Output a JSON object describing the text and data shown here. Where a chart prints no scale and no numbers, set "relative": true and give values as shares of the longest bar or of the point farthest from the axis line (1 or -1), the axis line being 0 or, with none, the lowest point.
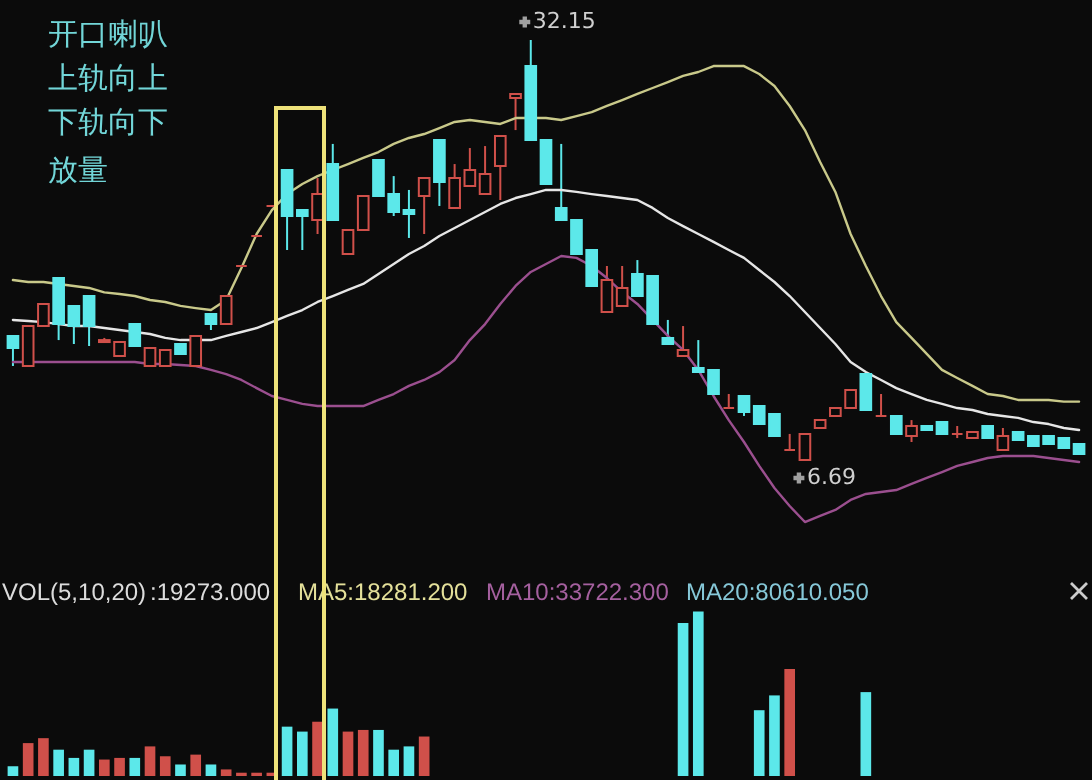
{
  "chart_data": [
    {
      "type": "candlestick",
      "categories": [
        null,
        null,
        null,
        null,
        null,
        null,
        null,
        null,
        null,
        null,
        null,
        null,
        null,
        null,
        null,
        null,
        null,
        null,
        null,
        null,
        null,
        null,
        null,
        null,
        null,
        null,
        null,
        null,
        null,
        null,
        null,
        null,
        null,
        null,
        null,
        null,
        null,
        null,
        null,
        null,
        null,
        null,
        null,
        null,
        null,
        null,
        null,
        null,
        null,
        null,
        null,
        null,
        null,
        null,
        null,
        null,
        null,
        null,
        null,
        null,
        null,
        null,
        null,
        null,
        null,
        null,
        null,
        null,
        null,
        null,
        null
      ],
      "ohlc": [
        [
          14.21,
          14.21,
          12.39,
          13.48
        ],
        [
          12.39,
          14.81,
          12.39,
          14.81
        ],
        [
          14.81,
          16.15,
          14.81,
          16.15
        ],
        [
          17.72,
          17.72,
          13.96,
          14.93
        ],
        [
          16.03,
          16.03,
          13.72,
          14.81
        ],
        [
          16.63,
          16.63,
          13.6,
          14.81
        ],
        [
          13.84,
          14.09,
          13.84,
          13.96
        ],
        [
          13.0,
          13.84,
          13.0,
          13.84
        ],
        [
          14.93,
          14.93,
          13.6,
          13.6
        ],
        [
          12.39,
          13.48,
          12.39,
          13.48
        ],
        [
          12.39,
          13.36,
          12.39,
          13.36
        ],
        [
          13.72,
          13.72,
          13.12,
          13.12
        ],
        [
          12.39,
          14.21,
          12.39,
          14.21
        ],
        [
          15.54,
          15.54,
          14.57,
          14.93
        ],
        [
          14.93,
          16.63,
          14.93,
          16.63
        ],
        [
          18.45,
          18.45,
          18.45,
          18.45
        ],
        [
          20.27,
          20.27,
          20.27,
          20.27
        ],
        [
          22.09,
          22.09,
          22.09,
          22.09
        ],
        [
          24.27,
          24.27,
          19.42,
          21.48
        ],
        [
          21.84,
          21.84,
          19.42,
          21.48
        ],
        [
          21.24,
          23.78,
          20.39,
          22.81
        ],
        [
          24.63,
          25.85,
          21.24,
          21.24
        ],
        [
          19.18,
          20.63,
          19.18,
          20.63
        ],
        [
          20.63,
          22.69,
          20.63,
          22.69
        ],
        [
          24.88,
          24.88,
          22.69,
          22.69
        ],
        [
          22.81,
          23.9,
          21.48,
          21.72
        ],
        [
          21.84,
          23.06,
          20.15,
          21.6
        ],
        [
          22.69,
          23.78,
          20.39,
          23.78
        ],
        [
          26.09,
          26.09,
          22.09,
          23.54
        ],
        [
          21.97,
          24.63,
          21.97,
          23.78
        ],
        [
          23.3,
          25.6,
          23.3,
          24.27
        ],
        [
          22.81,
          25.72,
          22.81,
          24.03
        ],
        [
          24.51,
          26.33,
          22.45,
          26.33
        ],
        [
          28.63,
          28.88,
          26.69,
          28.88
        ],
        [
          30.57,
          32.15,
          26.09,
          26.09
        ],
        [
          26.09,
          26.09,
          23.42,
          23.42
        ],
        [
          21.97,
          25.85,
          21.24,
          21.24
        ],
        [
          21.24,
          21.24,
          19.18,
          19.18
        ],
        [
          19.42,
          19.42,
          17.24,
          17.24
        ],
        [
          15.66,
          18.45,
          15.66,
          17.6
        ],
        [
          16.03,
          18.45,
          16.03,
          17.12
        ],
        [
          17.96,
          18.81,
          16.63,
          16.63
        ],
        [
          17.84,
          17.84,
          14.93,
          14.93
        ],
        [
          14.09,
          15.18,
          13.72,
          13.72
        ],
        [
          13.0,
          14.81,
          13.0,
          13.36
        ],
        [
          12.27,
          13.96,
          12.02,
          12.02
        ],
        [
          12.15,
          12.15,
          10.69,
          10.69
        ],
        [
          9.84,
          10.69,
          9.84,
          9.84
        ],
        [
          10.57,
          10.57,
          9.36,
          9.6
        ],
        [
          9.96,
          9.96,
          8.87,
          8.87
        ],
        [
          9.48,
          9.48,
          8.15,
          8.15
        ],
        [
          7.3,
          8.27,
          7.3,
          7.3
        ],
        [
          6.69,
          8.27,
          6.69,
          8.27
        ],
        [
          8.63,
          9.11,
          8.63,
          9.11
        ],
        [
          9.36,
          9.84,
          9.36,
          9.84
        ],
        [
          9.84,
          10.93,
          9.84,
          10.93
        ],
        [
          11.9,
          11.9,
          9.72,
          9.72
        ],
        [
          9.36,
          10.69,
          9.36,
          9.36
        ],
        [
          9.36,
          9.36,
          8.27,
          8.27
        ],
        [
          8.15,
          9.11,
          7.78,
          8.75
        ],
        [
          8.75,
          8.75,
          8.51,
          8.51
        ],
        [
          8.99,
          8.99,
          8.27,
          8.27
        ],
        [
          8.27,
          8.75,
          8.02,
          8.27
        ],
        [
          8.02,
          8.39,
          8.02,
          8.39
        ],
        [
          8.75,
          8.75,
          8.02,
          8.02
        ],
        [
          7.3,
          8.63,
          7.3,
          8.15
        ],
        [
          8.39,
          8.39,
          7.9,
          7.9
        ],
        [
          8.15,
          8.15,
          7.54,
          7.54
        ],
        [
          8.15,
          8.15,
          7.66,
          7.66
        ],
        [
          8.02,
          8.02,
          7.42,
          7.42
        ],
        [
          7.66,
          7.66,
          7.05,
          7.05
        ]
      ],
      "colors": [
        "#5ce8ea",
        "#d0504a",
        "#d0504a",
        "#5ce8ea",
        "#5ce8ea",
        "#5ce8ea",
        "#d0504a",
        "#d0504a",
        "#5ce8ea",
        "#d0504a",
        "#d0504a",
        "#5ce8ea",
        "#d0504a",
        "#5ce8ea",
        "#d0504a",
        "#d0504a",
        "#d0504a",
        "#d0504a",
        "#5ce8ea",
        "#5ce8ea",
        "#d0504a",
        "#5ce8ea",
        "#d0504a",
        "#d0504a",
        "#5ce8ea",
        "#5ce8ea",
        "#5ce8ea",
        "#d0504a",
        "#5ce8ea",
        "#d0504a",
        "#d0504a",
        "#d0504a",
        "#d0504a",
        "#d0504a",
        "#5ce8ea",
        "#5ce8ea",
        "#5ce8ea",
        "#5ce8ea",
        "#5ce8ea",
        "#d0504a",
        "#d0504a",
        "#5ce8ea",
        "#5ce8ea",
        "#5ce8ea",
        "#d0504a",
        "#5ce8ea",
        "#5ce8ea",
        "#d0504a",
        "#5ce8ea",
        "#5ce8ea",
        "#5ce8ea",
        "#d0504a",
        "#d0504a",
        "#d0504a",
        "#d0504a",
        "#d0504a",
        "#5ce8ea",
        "#d0504a",
        "#5ce8ea",
        "#d0504a",
        "#5ce8ea",
        "#5ce8ea",
        "#d0504a",
        "#d0504a",
        "#5ce8ea",
        "#d0504a",
        "#5ce8ea",
        "#5ce8ea",
        "#5ce8ea",
        "#5ce8ea",
        "#5ce8ea"
      ],
      "series": [
        {
          "type": "line",
          "color": "#c9c98a",
          "values": [
            17.6,
            17.48,
            17.48,
            17.36,
            17.24,
            17.12,
            16.85,
            16.75,
            16.63,
            16.39,
            16.27,
            16.03,
            15.9,
            15.78,
            16.39,
            18.33,
            20.39,
            21.84,
            22.81,
            23.42,
            23.9,
            24.27,
            24.63,
            25.0,
            25.36,
            25.85,
            26.21,
            26.45,
            26.81,
            27.18,
            27.3,
            27.18,
            27.06,
            27.42,
            27.42,
            27.42,
            27.3,
            27.54,
            27.78,
            28.15,
            28.51,
            28.88,
            29.24,
            29.6,
            29.97,
            30.21,
            30.57,
            30.57,
            30.57,
            30.09,
            29.36,
            28.15,
            26.69,
            24.75,
            22.94,
            20.39,
            18.45,
            16.63,
            15.05,
            14.09,
            13.12,
            12.15,
            11.66,
            11.18,
            10.69,
            10.57,
            10.33,
            10.33,
            10.33,
            10.23,
            10.23
          ]
        },
        {
          "type": "line",
          "color": "#e6e6e6",
          "values": [
            15.18,
            15.12,
            15.05,
            14.93,
            14.81,
            14.81,
            14.69,
            14.57,
            14.45,
            14.33,
            14.09,
            13.96,
            13.96,
            13.96,
            14.21,
            14.45,
            14.69,
            15.05,
            15.42,
            15.78,
            16.27,
            16.63,
            17.0,
            17.36,
            17.96,
            18.57,
            19.18,
            19.66,
            20.27,
            20.75,
            21.24,
            21.72,
            22.21,
            22.57,
            22.81,
            23.06,
            23.06,
            22.94,
            22.81,
            22.69,
            22.57,
            22.45,
            21.97,
            21.36,
            20.87,
            20.39,
            19.91,
            19.42,
            18.94,
            18.21,
            17.48,
            16.63,
            15.66,
            14.69,
            13.72,
            12.63,
            12.02,
            11.54,
            11.05,
            10.69,
            10.33,
            10.09,
            9.84,
            9.72,
            9.48,
            9.36,
            9.24,
            8.99,
            8.87,
            8.63,
            8.51
          ]
        },
        {
          "type": "line",
          "color": "#9b4f8f",
          "values": [
            12.63,
            12.63,
            12.63,
            12.63,
            12.63,
            12.63,
            12.63,
            12.63,
            12.63,
            12.51,
            12.51,
            12.45,
            12.39,
            12.15,
            11.9,
            11.54,
            11.05,
            10.57,
            10.33,
            10.09,
            9.96,
            9.96,
            9.96,
            9.96,
            10.33,
            10.69,
            11.18,
            11.54,
            12.02,
            12.75,
            13.96,
            14.93,
            16.15,
            17.24,
            18.09,
            18.57,
            19.06,
            18.94,
            18.45,
            17.72,
            16.87,
            16.15,
            15.18,
            14.21,
            13.36,
            12.15,
            10.57,
            9.11,
            7.78,
            6.33,
            4.99,
            3.9,
            2.93,
            3.3,
            3.66,
            4.27,
            4.63,
            4.75,
            4.87,
            5.24,
            5.6,
            5.96,
            6.33,
            6.57,
            6.81,
            6.93,
            6.93,
            6.93,
            6.81,
            6.69,
            6.57
          ]
        }
      ],
      "tick_labels": false,
      "annotations": [
        "开口喇叭",
        "上轨向上",
        "下轨向下",
        "放量",
        "32.15",
        "6.69"
      ]
    },
    {
      "type": "bar",
      "relative": true,
      "tick_labels": false,
      "categories": [
        null,
        null,
        null,
        null,
        null,
        null,
        null,
        null,
        null,
        null,
        null,
        null,
        null,
        null,
        null,
        null,
        null,
        null,
        null,
        null,
        null,
        null,
        null,
        null,
        null,
        null,
        null,
        null,
        null,
        null,
        null,
        null,
        null,
        null,
        null,
        null,
        null,
        null,
        null,
        null,
        null,
        null,
        null,
        null,
        null,
        null,
        null,
        null,
        null,
        null,
        null,
        null,
        null,
        null,
        null,
        null,
        null,
        null,
        null,
        null,
        null,
        null,
        null,
        null,
        null,
        null,
        null,
        null,
        null,
        null,
        null
      ],
      "values": [
        0.06,
        0.2,
        0.23,
        0.16,
        0.11,
        0.16,
        0.1,
        0.11,
        0.11,
        0.18,
        0.12,
        0.07,
        0.13,
        0.07,
        0.04,
        0.02,
        0.02,
        0.02,
        0.3,
        0.27,
        0.33,
        0.41,
        0.27,
        0.28,
        0.28,
        0.16,
        0.18,
        0.24,
        null,
        null,
        null,
        null,
        null,
        null,
        null,
        null,
        null,
        null,
        null,
        null,
        null,
        null,
        null,
        null,
        0.93,
        1,
        null,
        null,
        null,
        0.4,
        0.49,
        0.65,
        null,
        null,
        null,
        null,
        0.51,
        null,
        null,
        null,
        null,
        null,
        null,
        null,
        null,
        null,
        null,
        null,
        null,
        null,
        null
      ],
      "colors": [
        "#5ce8ea",
        "#d0504a",
        "#d0504a",
        "#5ce8ea",
        "#5ce8ea",
        "#5ce8ea",
        "#d0504a",
        "#d0504a",
        "#5ce8ea",
        "#d0504a",
        "#d0504a",
        "#5ce8ea",
        "#d0504a",
        "#5ce8ea",
        "#d0504a",
        "#d0504a",
        "#d0504a",
        "#d0504a",
        "#5ce8ea",
        "#5ce8ea",
        "#d0504a",
        "#5ce8ea",
        "#d0504a",
        "#d0504a",
        "#5ce8ea",
        "#5ce8ea",
        "#5ce8ea",
        "#d0504a",
        "#5ce8ea",
        "#d0504a",
        "#d0504a",
        "#d0504a",
        "#d0504a",
        "#d0504a",
        "#5ce8ea",
        "#5ce8ea",
        "#5ce8ea",
        "#5ce8ea",
        "#5ce8ea",
        "#d0504a",
        "#d0504a",
        "#5ce8ea",
        "#5ce8ea",
        "#5ce8ea",
        "#5ce8ea",
        "#5ce8ea",
        "#5ce8ea",
        "#d0504a",
        "#5ce8ea",
        "#5ce8ea",
        "#5ce8ea",
        "#d0504a",
        "#d0504a",
        "#d0504a",
        "#d0504a",
        "#d0504a",
        "#5ce8ea",
        "#d0504a",
        "#5ce8ea",
        "#d0504a",
        "#5ce8ea",
        "#5ce8ea",
        "#d0504a",
        "#d0504a",
        "#5ce8ea",
        "#d0504a",
        "#5ce8ea",
        "#5ce8ea",
        "#5ce8ea",
        "#5ce8ea",
        "#5ce8ea"
      ],
      "annotations": [
        "VOL(5,10,20)",
        ":19273.000",
        "MA5:18281.200",
        "MA10:33722.300",
        "MA20:80610.050"
      ]
    }
  ]
}
